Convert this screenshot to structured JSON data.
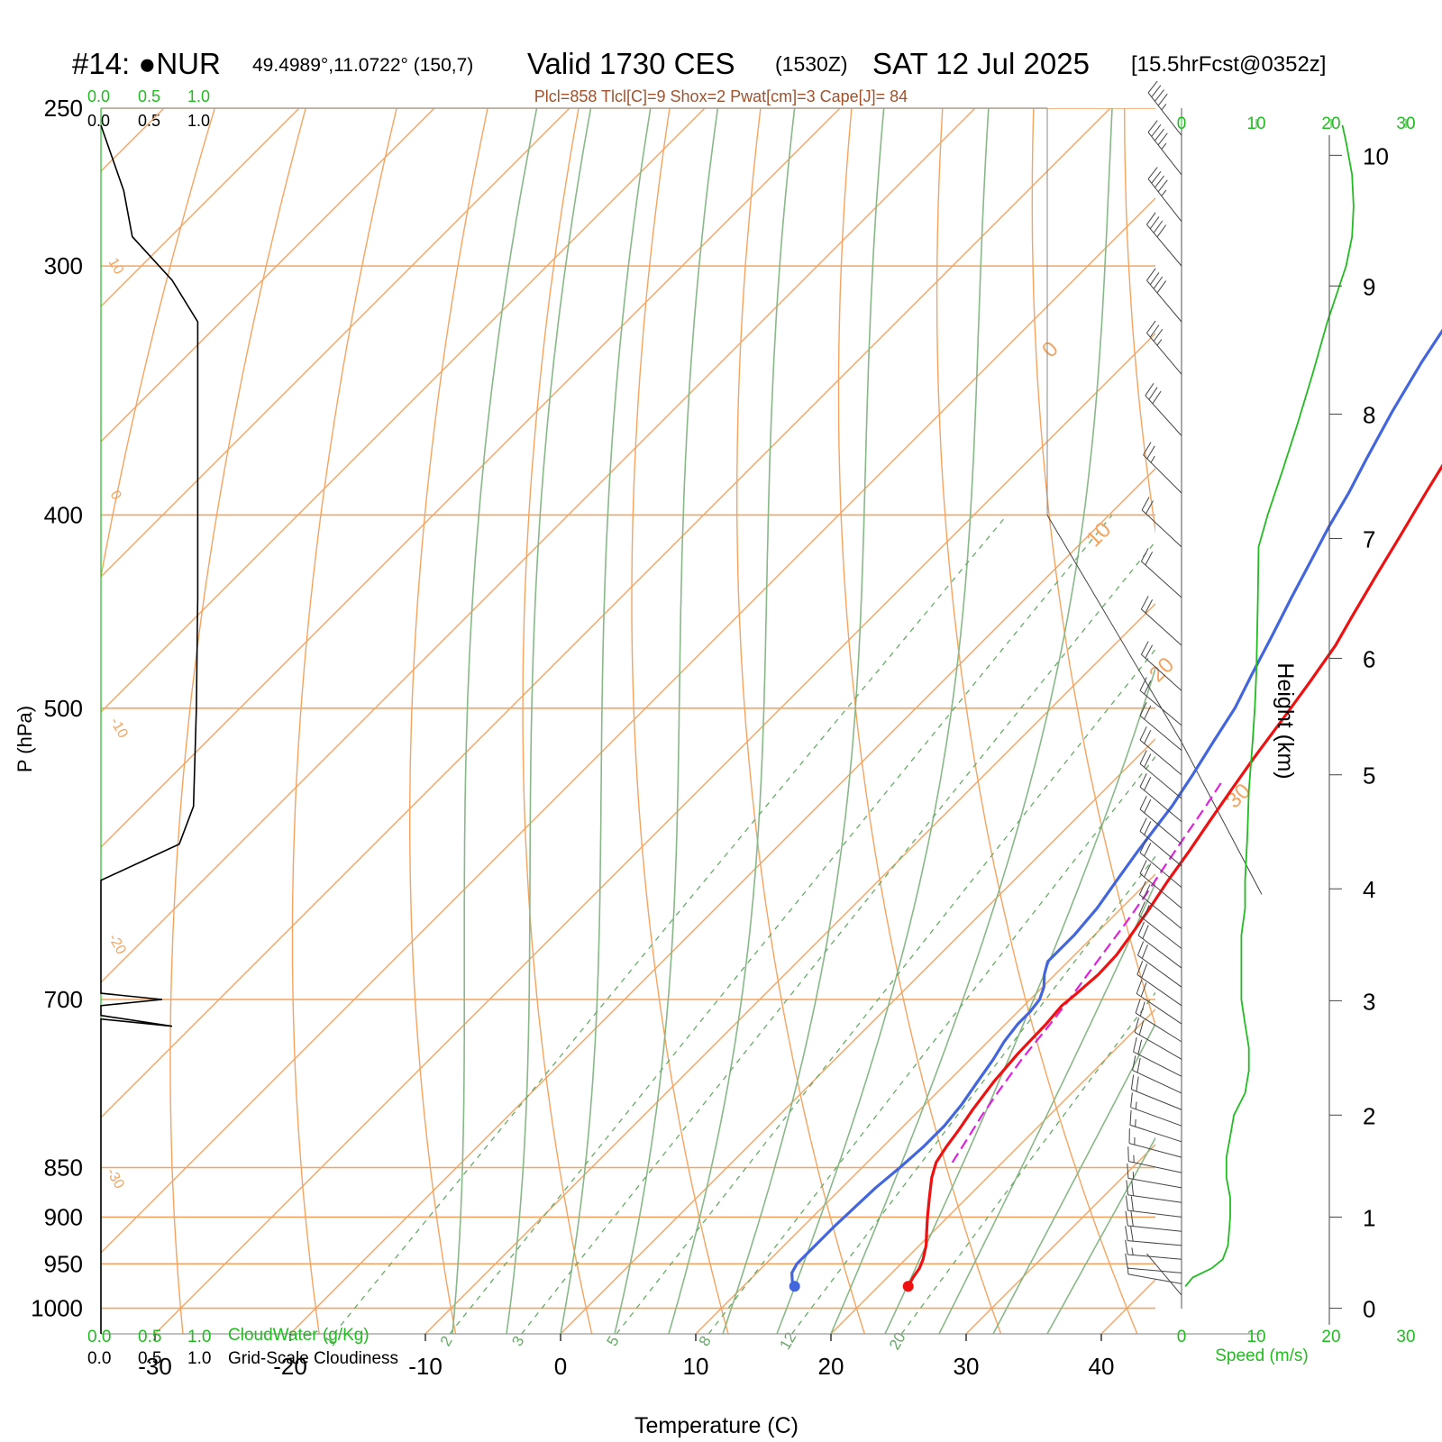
{
  "header": {
    "station": "#14: ●NUR",
    "coords": "49.4989°,11.0722° (150,7)",
    "valid": "Valid 1730 CES",
    "utc": "(1530Z)",
    "date": "SAT 12 Jul 2025",
    "fcst": "[15.5hrFcst@0352z]",
    "indices": "Plcl=858 Tlcl[C]=9 Shox=2 Pwat[cm]=3 Cape[J]= 84"
  },
  "colors": {
    "temperature": "#ee1111",
    "dewpoint": "#4466dd",
    "parcel": "#dd22dd",
    "isotherm": "#f4a460",
    "dry_adiabat": "#f4a460",
    "moist_adiabat": "#88b888",
    "mixing_ratio": "#66aa66",
    "speed": "#22bb22",
    "cloud": "#000000"
  },
  "chart_data": {
    "type": "line",
    "subtype": "skew-t log-p sounding",
    "xlabel": "Temperature (C)",
    "ylabel": "P (hPa)",
    "xticks": [
      -30,
      -20,
      -10,
      0,
      10,
      20,
      30,
      40
    ],
    "pressure_ticks": [
      250,
      300,
      400,
      500,
      700,
      850,
      900,
      950,
      1000
    ],
    "pressure_range": [
      250,
      1030
    ],
    "temperature_range_at_surface": [
      -34,
      36
    ],
    "isotherm_labels": [
      "10",
      "0",
      "-10",
      "-20",
      "-30",
      "0",
      "10",
      "20",
      "30"
    ],
    "mixing_ratio_labels": [
      "1",
      "2",
      "3",
      "5",
      "8",
      "12",
      "20"
    ],
    "top_scale_green": [
      "0.0",
      "0.5",
      "1.0"
    ],
    "top_scale_black": [
      "0.0",
      "0.5",
      "1.0"
    ],
    "bottom_scale_green": [
      "0.0",
      "0.5",
      "1.0"
    ],
    "bottom_scale_black": [
      "0.0",
      "0.5",
      "1.0"
    ],
    "cloudwater_label": "CloudWater (g/Kg)",
    "cloudiness_label": "Grid-Scale Cloudiness",
    "series": [
      {
        "name": "temperature",
        "points": [
          [
            975,
            22.2
          ],
          [
            965,
            21.9
          ],
          [
            955,
            21.7
          ],
          [
            945,
            21.3
          ],
          [
            930,
            20.5
          ],
          [
            915,
            19.5
          ],
          [
            900,
            18.5
          ],
          [
            880,
            17.2
          ],
          [
            860,
            15.9
          ],
          [
            845,
            15.1
          ],
          [
            830,
            14.7
          ],
          [
            815,
            14.4
          ],
          [
            795,
            13.9
          ],
          [
            770,
            13.4
          ],
          [
            745,
            13.1
          ],
          [
            720,
            13.0
          ],
          [
            705,
            12.8
          ],
          [
            695,
            13.0
          ],
          [
            680,
            13.2
          ],
          [
            665,
            13.1
          ],
          [
            650,
            12.7
          ],
          [
            630,
            12.1
          ],
          [
            610,
            11.4
          ],
          [
            590,
            10.8
          ],
          [
            570,
            10.1
          ],
          [
            550,
            9.4
          ],
          [
            530,
            8.7
          ],
          [
            505,
            7.9
          ],
          [
            485,
            7.2
          ],
          [
            465,
            6.4
          ],
          [
            450,
            5.5
          ],
          [
            430,
            4.3
          ],
          [
            410,
            3.1
          ],
          [
            390,
            1.8
          ],
          [
            370,
            0.5
          ],
          [
            355,
            -0.5
          ],
          [
            335,
            -1.6
          ],
          [
            315,
            -2.5
          ],
          [
            298,
            -3.5
          ],
          [
            285,
            -4.4
          ],
          [
            277,
            -5.0
          ],
          [
            260,
            -5.0
          ],
          [
            255,
            -5.0
          ]
        ]
      },
      {
        "name": "dewpoint",
        "points": [
          [
            975,
            13.8
          ],
          [
            970,
            13.3
          ],
          [
            960,
            12.6
          ],
          [
            950,
            12.3
          ],
          [
            935,
            12.3
          ],
          [
            910,
            12.3
          ],
          [
            890,
            12.4
          ],
          [
            870,
            12.5
          ],
          [
            850,
            12.8
          ],
          [
            830,
            13.0
          ],
          [
            810,
            13.0
          ],
          [
            790,
            12.7
          ],
          [
            770,
            12.2
          ],
          [
            750,
            11.7
          ],
          [
            735,
            11.2
          ],
          [
            720,
            10.9
          ],
          [
            710,
            10.9
          ],
          [
            700,
            10.7
          ],
          [
            690,
            10.1
          ],
          [
            680,
            9.2
          ],
          [
            670,
            8.5
          ],
          [
            650,
            8.5
          ],
          [
            630,
            8.2
          ],
          [
            610,
            7.6
          ],
          [
            590,
            7.0
          ],
          [
            575,
            6.6
          ],
          [
            560,
            6.2
          ],
          [
            540,
            5.4
          ],
          [
            520,
            4.5
          ],
          [
            500,
            3.6
          ],
          [
            480,
            2.3
          ],
          [
            460,
            1.0
          ],
          [
            440,
            -0.4
          ],
          [
            420,
            -1.8
          ],
          [
            405,
            -2.9
          ],
          [
            390,
            -3.9
          ],
          [
            375,
            -5.1
          ],
          [
            355,
            -6.7
          ],
          [
            335,
            -8.2
          ],
          [
            320,
            -9.2
          ],
          [
            310,
            -10.5
          ],
          [
            298,
            -12.3
          ],
          [
            285,
            -13.7
          ],
          [
            270,
            -15.0
          ],
          [
            262,
            -16.0
          ],
          [
            256,
            -17.0
          ]
        ]
      },
      {
        "name": "parcel",
        "points": [
          [
            845,
            16.3
          ],
          [
            820,
            15.6
          ],
          [
            800,
            15.0
          ],
          [
            780,
            14.5
          ],
          [
            750,
            13.8
          ],
          [
            720,
            13.3
          ],
          [
            700,
            12.9
          ],
          [
            680,
            12.4
          ],
          [
            660,
            11.9
          ],
          [
            640,
            11.4
          ],
          [
            620,
            10.8
          ],
          [
            600,
            10.1
          ],
          [
            580,
            9.4
          ],
          [
            560,
            8.7
          ],
          [
            545,
            8.1
          ]
        ]
      }
    ],
    "cloud_fraction": {
      "points": [
        [
          1030,
          0.0
        ],
        [
          716,
          0.0
        ],
        [
          722,
          0.5
        ],
        [
          713,
          0.0
        ],
        [
          705,
          0.0
        ],
        [
          700,
          0.43
        ],
        [
          695,
          0.0
        ],
        [
          690,
          0.0
        ],
        [
          610,
          0.0
        ],
        [
          585,
          0.55
        ],
        [
          560,
          0.65
        ],
        [
          500,
          0.67
        ],
        [
          440,
          0.68
        ],
        [
          320,
          0.68
        ],
        [
          305,
          0.5
        ],
        [
          290,
          0.22
        ],
        [
          275,
          0.16
        ],
        [
          255,
          0.0
        ]
      ]
    },
    "height_axis": {
      "label": "Height (km)",
      "ticks": [
        0,
        1,
        2,
        3,
        4,
        5,
        6,
        7,
        8,
        9,
        10
      ],
      "tick_pressures": [
        1000,
        900,
        800,
        701,
        616,
        540,
        472,
        411,
        356,
        307,
        264
      ]
    },
    "speed_axis": {
      "label": "Speed (m/s)",
      "ticks": [
        0,
        10,
        20,
        30
      ]
    },
    "wind_speed_profile": {
      "points": [
        [
          975,
          0.5
        ],
        [
          965,
          1.5
        ],
        [
          955,
          4.0
        ],
        [
          945,
          5.5
        ],
        [
          930,
          6.2
        ],
        [
          900,
          6.5
        ],
        [
          880,
          6.5
        ],
        [
          860,
          6.0
        ],
        [
          840,
          6.0
        ],
        [
          820,
          6.5
        ],
        [
          800,
          7.0
        ],
        [
          780,
          8.5
        ],
        [
          760,
          9.0
        ],
        [
          740,
          9.0
        ],
        [
          720,
          8.5
        ],
        [
          700,
          8.0
        ],
        [
          680,
          8.0
        ],
        [
          650,
          8.0
        ],
        [
          630,
          8.5
        ],
        [
          610,
          8.5
        ],
        [
          580,
          8.8
        ],
        [
          550,
          9.0
        ],
        [
          520,
          9.5
        ],
        [
          500,
          9.8
        ],
        [
          480,
          10.0
        ],
        [
          440,
          10.2
        ],
        [
          415,
          10.3
        ],
        [
          400,
          11.5
        ],
        [
          380,
          13.5
        ],
        [
          360,
          15.5
        ],
        [
          340,
          17.5
        ],
        [
          320,
          19.5
        ],
        [
          300,
          22.0
        ],
        [
          290,
          22.8
        ],
        [
          280,
          23.0
        ],
        [
          270,
          22.8
        ],
        [
          260,
          22.0
        ],
        [
          255,
          21.5
        ]
      ]
    },
    "wind_barbs": [
      {
        "p": 985,
        "spd": 1,
        "dir": 320
      },
      {
        "p": 972,
        "spd": 2,
        "dir": 280
      },
      {
        "p": 960,
        "spd": 6,
        "dir": 275
      },
      {
        "p": 945,
        "spd": 8,
        "dir": 275
      },
      {
        "p": 930,
        "spd": 9,
        "dir": 275
      },
      {
        "p": 915,
        "spd": 9,
        "dir": 276
      },
      {
        "p": 900,
        "spd": 9,
        "dir": 277
      },
      {
        "p": 885,
        "spd": 9,
        "dir": 278
      },
      {
        "p": 870,
        "spd": 8,
        "dir": 280
      },
      {
        "p": 855,
        "spd": 8,
        "dir": 282
      },
      {
        "p": 840,
        "spd": 8,
        "dir": 285
      },
      {
        "p": 825,
        "spd": 8,
        "dir": 288
      },
      {
        "p": 810,
        "spd": 8,
        "dir": 290
      },
      {
        "p": 795,
        "spd": 9,
        "dir": 292
      },
      {
        "p": 780,
        "spd": 9,
        "dir": 295
      },
      {
        "p": 765,
        "spd": 9,
        "dir": 297
      },
      {
        "p": 750,
        "spd": 9,
        "dir": 300
      },
      {
        "p": 735,
        "spd": 9,
        "dir": 302
      },
      {
        "p": 720,
        "spd": 9,
        "dir": 304
      },
      {
        "p": 705,
        "spd": 9,
        "dir": 305
      },
      {
        "p": 690,
        "spd": 9,
        "dir": 306
      },
      {
        "p": 675,
        "spd": 9,
        "dir": 307
      },
      {
        "p": 660,
        "spd": 9,
        "dir": 308
      },
      {
        "p": 645,
        "spd": 9,
        "dir": 309
      },
      {
        "p": 630,
        "spd": 9,
        "dir": 310
      },
      {
        "p": 615,
        "spd": 9,
        "dir": 310
      },
      {
        "p": 600,
        "spd": 9,
        "dir": 310
      },
      {
        "p": 585,
        "spd": 9,
        "dir": 310
      },
      {
        "p": 570,
        "spd": 9,
        "dir": 310
      },
      {
        "p": 555,
        "spd": 9,
        "dir": 310
      },
      {
        "p": 540,
        "spd": 9,
        "dir": 310
      },
      {
        "p": 525,
        "spd": 10,
        "dir": 310
      },
      {
        "p": 510,
        "spd": 10,
        "dir": 310
      },
      {
        "p": 490,
        "spd": 10,
        "dir": 312
      },
      {
        "p": 465,
        "spd": 10,
        "dir": 312
      },
      {
        "p": 440,
        "spd": 10,
        "dir": 312
      },
      {
        "p": 415,
        "spd": 11,
        "dir": 313
      },
      {
        "p": 390,
        "spd": 13,
        "dir": 315
      },
      {
        "p": 365,
        "spd": 15,
        "dir": 318
      },
      {
        "p": 340,
        "spd": 17,
        "dir": 320
      },
      {
        "p": 320,
        "spd": 19,
        "dir": 320
      },
      {
        "p": 300,
        "spd": 21,
        "dir": 320
      },
      {
        "p": 285,
        "spd": 23,
        "dir": 322
      },
      {
        "p": 270,
        "spd": 23,
        "dir": 322
      },
      {
        "p": 258,
        "spd": 22,
        "dir": 322
      }
    ]
  }
}
